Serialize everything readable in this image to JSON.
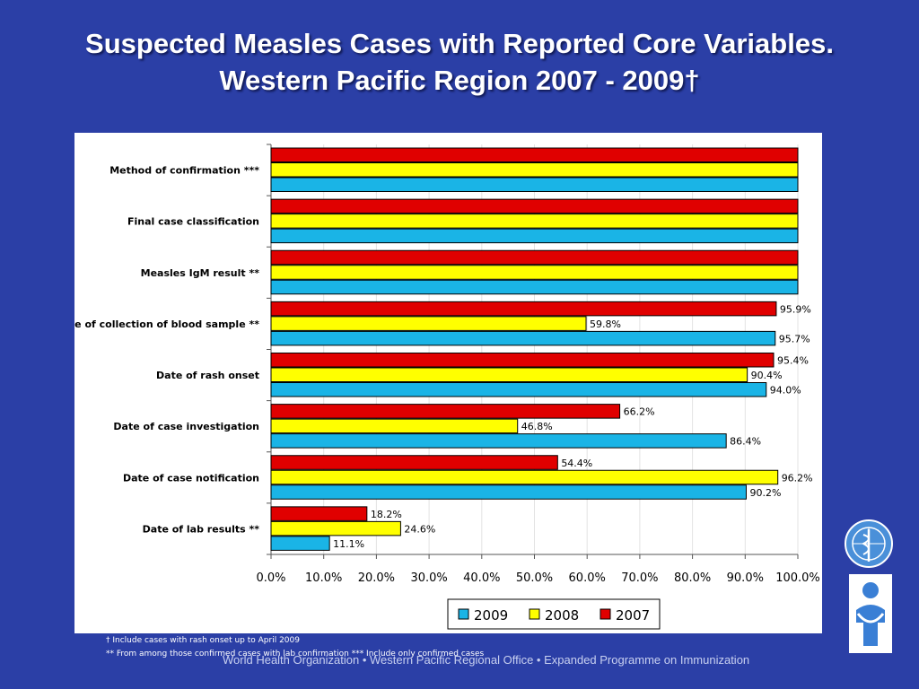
{
  "slide": {
    "title_line1": "Suspected Measles Cases with Reported Core Variables.",
    "title_line2": "Western Pacific Region 2007 - 2009†",
    "footnote1": "†  Include cases with rash onset up to April 2009",
    "footnote2": "**  From among those confirmed cases with lab confirmation    *** Include  only confirmed cases",
    "footer": "World Health Organization • Western Pacific Regional Office • Expanded Programme on Immunization",
    "colors": {
      "background": "#2b3fa6",
      "s2009": "#1ab4e6",
      "s2008": "#ffff00",
      "s2007": "#e00000"
    }
  },
  "chart_data": {
    "type": "bar",
    "orientation": "horizontal",
    "categories": [
      "Method of confirmation ***",
      "Final case classification",
      "Measles IgM result **",
      "Date of collection of blood sample **",
      "Date of rash onset",
      "Date of case investigation",
      "Date of case notification",
      "Date of lab results **"
    ],
    "series": [
      {
        "name": "2007",
        "color": "#e00000",
        "values": [
          100,
          100,
          100,
          95.9,
          95.4,
          66.2,
          54.4,
          18.2
        ],
        "labels": [
          "",
          "",
          "",
          "95.9%",
          "95.4%",
          "66.2%",
          "54.4%",
          "18.2%"
        ]
      },
      {
        "name": "2008",
        "color": "#ffff00",
        "values": [
          100,
          100,
          100,
          59.8,
          90.4,
          46.8,
          96.2,
          24.6
        ],
        "labels": [
          "",
          "",
          "",
          "59.8%",
          "90.4%",
          "46.8%",
          "96.2%",
          "24.6%"
        ]
      },
      {
        "name": "2009",
        "color": "#1ab4e6",
        "values": [
          100,
          100,
          100,
          95.7,
          94.0,
          86.4,
          90.2,
          11.1
        ],
        "labels": [
          "",
          "",
          "",
          "95.7%",
          "94.0%",
          "86.4%",
          "90.2%",
          "11.1%"
        ]
      }
    ],
    "xlim": [
      0,
      100
    ],
    "xticks": [
      "0.0%",
      "10.0%",
      "20.0%",
      "30.0%",
      "40.0%",
      "50.0%",
      "60.0%",
      "70.0%",
      "80.0%",
      "90.0%",
      "100.0%"
    ],
    "grid": true,
    "legend": {
      "position": "bottom",
      "order": [
        "2009",
        "2008",
        "2007"
      ]
    }
  }
}
